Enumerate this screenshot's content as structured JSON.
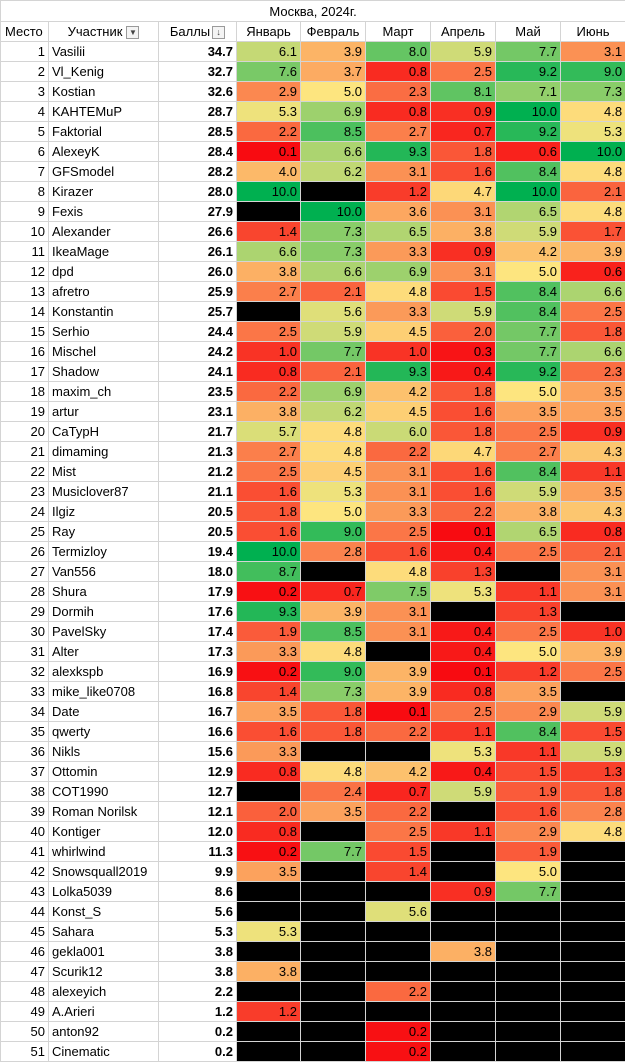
{
  "title": "Москва, 2024г.",
  "headers": {
    "place": "Место",
    "participant": "Участник",
    "score": "Баллы",
    "months": [
      "Январь",
      "Февраль",
      "Март",
      "Апрель",
      "Май",
      "Июнь"
    ]
  },
  "icons": {
    "filter": "filter-dropdown-icon",
    "sort": "sort-descending-icon"
  },
  "colors": {
    "black_cell": "#000000",
    "scale_low": "#f8070f",
    "scale_mid": "#fde57f",
    "scale_high": "#00b050"
  },
  "rows": [
    {
      "place": "1",
      "name": "Vasilii",
      "score": "34.7",
      "months": [
        "6.1",
        "3.9",
        "8.0",
        "5.9",
        "7.7",
        "3.1"
      ]
    },
    {
      "place": "2",
      "name": "Vl_Kenig",
      "score": "32.7",
      "months": [
        "7.6",
        "3.7",
        "0.8",
        "2.5",
        "9.2",
        "9.0"
      ]
    },
    {
      "place": "3",
      "name": "Kostian",
      "score": "32.6",
      "months": [
        "2.9",
        "5.0",
        "2.3",
        "8.1",
        "7.1",
        "7.3"
      ]
    },
    {
      "place": "4",
      "name": "KAHTEMuP",
      "score": "28.7",
      "months": [
        "5.3",
        "6.9",
        "0.8",
        "0.9",
        "10.0",
        "4.8"
      ]
    },
    {
      "place": "5",
      "name": "Faktorial",
      "score": "28.5",
      "months": [
        "2.2",
        "8.5",
        "2.7",
        "0.7",
        "9.2",
        "5.3"
      ]
    },
    {
      "place": "6",
      "name": "AlexeyK",
      "score": "28.4",
      "months": [
        "0.1",
        "6.6",
        "9.3",
        "1.8",
        "0.6",
        "10.0"
      ]
    },
    {
      "place": "7",
      "name": "GFSmodel",
      "score": "28.2",
      "months": [
        "4.0",
        "6.2",
        "3.1",
        "1.6",
        "8.4",
        "4.8"
      ]
    },
    {
      "place": "8",
      "name": "Kirazer",
      "score": "28.0",
      "months": [
        "10.0",
        null,
        "1.2",
        "4.7",
        "10.0",
        "2.1"
      ]
    },
    {
      "place": "9",
      "name": "Fexis",
      "score": "27.9",
      "months": [
        null,
        "10.0",
        "3.6",
        "3.1",
        "6.5",
        "4.8"
      ]
    },
    {
      "place": "10",
      "name": "Alexander",
      "score": "26.6",
      "months": [
        "1.4",
        "7.3",
        "6.5",
        "3.8",
        "5.9",
        "1.7"
      ]
    },
    {
      "place": "11",
      "name": "IkeaMage",
      "score": "26.1",
      "months": [
        "6.6",
        "7.3",
        "3.3",
        "0.9",
        "4.2",
        "3.9"
      ]
    },
    {
      "place": "12",
      "name": "dpd",
      "score": "26.0",
      "months": [
        "3.8",
        "6.6",
        "6.9",
        "3.1",
        "5.0",
        "0.6"
      ]
    },
    {
      "place": "13",
      "name": "afretro",
      "score": "25.9",
      "months": [
        "2.7",
        "2.1",
        "4.8",
        "1.5",
        "8.4",
        "6.6"
      ]
    },
    {
      "place": "14",
      "name": "Konstantin",
      "score": "25.7",
      "months": [
        null,
        "5.6",
        "3.3",
        "5.9",
        "8.4",
        "2.5"
      ]
    },
    {
      "place": "15",
      "name": "Serhio",
      "score": "24.4",
      "months": [
        "2.5",
        "5.9",
        "4.5",
        "2.0",
        "7.7",
        "1.8"
      ]
    },
    {
      "place": "16",
      "name": "Mischel",
      "score": "24.2",
      "months": [
        "1.0",
        "7.7",
        "1.0",
        "0.3",
        "7.7",
        "6.6"
      ]
    },
    {
      "place": "17",
      "name": "Shadow",
      "score": "24.1",
      "months": [
        "0.8",
        "2.1",
        "9.3",
        "0.4",
        "9.2",
        "2.3"
      ]
    },
    {
      "place": "18",
      "name": "maxim_ch",
      "score": "23.5",
      "months": [
        "2.2",
        "6.9",
        "4.2",
        "1.8",
        "5.0",
        "3.5"
      ]
    },
    {
      "place": "19",
      "name": "artur",
      "score": "23.1",
      "months": [
        "3.8",
        "6.2",
        "4.5",
        "1.6",
        "3.5",
        "3.5"
      ]
    },
    {
      "place": "20",
      "name": "CaTypH",
      "score": "21.7",
      "months": [
        "5.7",
        "4.8",
        "6.0",
        "1.8",
        "2.5",
        "0.9"
      ]
    },
    {
      "place": "21",
      "name": "dimaming",
      "score": "21.3",
      "months": [
        "2.7",
        "4.8",
        "2.2",
        "4.7",
        "2.7",
        "4.3"
      ]
    },
    {
      "place": "22",
      "name": "Mist",
      "score": "21.2",
      "months": [
        "2.5",
        "4.5",
        "3.1",
        "1.6",
        "8.4",
        "1.1"
      ]
    },
    {
      "place": "23",
      "name": "Musiclover87",
      "score": "21.1",
      "months": [
        "1.6",
        "5.3",
        "3.1",
        "1.6",
        "5.9",
        "3.5"
      ]
    },
    {
      "place": "24",
      "name": "Ilgiz",
      "score": "20.5",
      "months": [
        "1.8",
        "5.0",
        "3.3",
        "2.2",
        "3.8",
        "4.3"
      ]
    },
    {
      "place": "25",
      "name": "Ray",
      "score": "20.5",
      "months": [
        "1.6",
        "9.0",
        "2.5",
        "0.1",
        "6.5",
        "0.8"
      ]
    },
    {
      "place": "26",
      "name": "Termizloy",
      "score": "19.4",
      "months": [
        "10.0",
        "2.8",
        "1.6",
        "0.4",
        "2.5",
        "2.1"
      ]
    },
    {
      "place": "27",
      "name": "Van556",
      "score": "18.0",
      "months": [
        "8.7",
        null,
        "4.8",
        "1.3",
        null,
        "3.1"
      ]
    },
    {
      "place": "28",
      "name": "Shura",
      "score": "17.9",
      "months": [
        "0.2",
        "0.7",
        "7.5",
        "5.3",
        "1.1",
        "3.1"
      ]
    },
    {
      "place": "29",
      "name": "Dormih",
      "score": "17.6",
      "months": [
        "9.3",
        "3.9",
        "3.1",
        null,
        "1.3",
        null
      ]
    },
    {
      "place": "30",
      "name": "PavelSky",
      "score": "17.4",
      "months": [
        "1.9",
        "8.5",
        "3.1",
        "0.4",
        "2.5",
        "1.0"
      ]
    },
    {
      "place": "31",
      "name": "Alter",
      "score": "17.3",
      "months": [
        "3.3",
        "4.8",
        null,
        "0.4",
        "5.0",
        "3.9"
      ]
    },
    {
      "place": "32",
      "name": "alexkspb",
      "score": "16.9",
      "months": [
        "0.2",
        "9.0",
        "3.9",
        "0.1",
        "1.2",
        "2.5"
      ]
    },
    {
      "place": "33",
      "name": "mike_like0708",
      "score": "16.8",
      "months": [
        "1.4",
        "7.3",
        "3.9",
        "0.8",
        "3.5",
        null
      ]
    },
    {
      "place": "34",
      "name": "Date",
      "score": "16.7",
      "months": [
        "3.5",
        "1.8",
        "0.1",
        "2.5",
        "2.9",
        "5.9"
      ]
    },
    {
      "place": "35",
      "name": "qwerty",
      "score": "16.6",
      "months": [
        "1.6",
        "1.8",
        "2.2",
        "1.1",
        "8.4",
        "1.5"
      ]
    },
    {
      "place": "36",
      "name": "Nikls",
      "score": "15.6",
      "months": [
        "3.3",
        null,
        null,
        "5.3",
        "1.1",
        "5.9"
      ]
    },
    {
      "place": "37",
      "name": "Ottomin",
      "score": "12.9",
      "months": [
        "0.8",
        "4.8",
        "4.2",
        "0.4",
        "1.5",
        "1.3"
      ]
    },
    {
      "place": "38",
      "name": "COT1990",
      "score": "12.7",
      "months": [
        null,
        "2.4",
        "0.7",
        "5.9",
        "1.9",
        "1.8"
      ]
    },
    {
      "place": "39",
      "name": "Roman Norilsk",
      "score": "12.1",
      "months": [
        "2.0",
        "3.5",
        "2.2",
        null,
        "1.6",
        "2.8"
      ]
    },
    {
      "place": "40",
      "name": "Kontiger",
      "score": "12.0",
      "months": [
        "0.8",
        null,
        "2.5",
        "1.1",
        "2.9",
        "4.8"
      ]
    },
    {
      "place": "41",
      "name": "whirlwind",
      "score": "11.3",
      "months": [
        "0.2",
        "7.7",
        "1.5",
        null,
        "1.9",
        null
      ]
    },
    {
      "place": "42",
      "name": "Snowsquall2019",
      "score": "9.9",
      "months": [
        "3.5",
        null,
        "1.4",
        null,
        "5.0",
        null
      ]
    },
    {
      "place": "43",
      "name": "Lolka5039",
      "score": "8.6",
      "months": [
        null,
        null,
        null,
        "0.9",
        "7.7",
        null
      ]
    },
    {
      "place": "44",
      "name": "Konst_S",
      "score": "5.6",
      "months": [
        null,
        null,
        "5.6",
        null,
        null,
        null
      ]
    },
    {
      "place": "45",
      "name": "Sahara",
      "score": "5.3",
      "months": [
        "5.3",
        null,
        null,
        null,
        null,
        null
      ]
    },
    {
      "place": "46",
      "name": "gekla001",
      "score": "3.8",
      "months": [
        null,
        null,
        null,
        "3.8",
        null,
        null
      ]
    },
    {
      "place": "47",
      "name": "Scurik12",
      "score": "3.8",
      "months": [
        "3.8",
        null,
        null,
        null,
        null,
        null
      ]
    },
    {
      "place": "48",
      "name": "alexeyich",
      "score": "2.2",
      "months": [
        null,
        null,
        "2.2",
        null,
        null,
        null
      ]
    },
    {
      "place": "49",
      "name": "A.Arieri",
      "score": "1.2",
      "months": [
        "1.2",
        null,
        null,
        null,
        null,
        null
      ]
    },
    {
      "place": "50",
      "name": "anton92",
      "score": "0.2",
      "months": [
        null,
        null,
        "0.2",
        null,
        null,
        null
      ]
    },
    {
      "place": "51",
      "name": "Cinematic",
      "score": "0.2",
      "months": [
        null,
        null,
        "0.2",
        null,
        null,
        null
      ]
    }
  ]
}
